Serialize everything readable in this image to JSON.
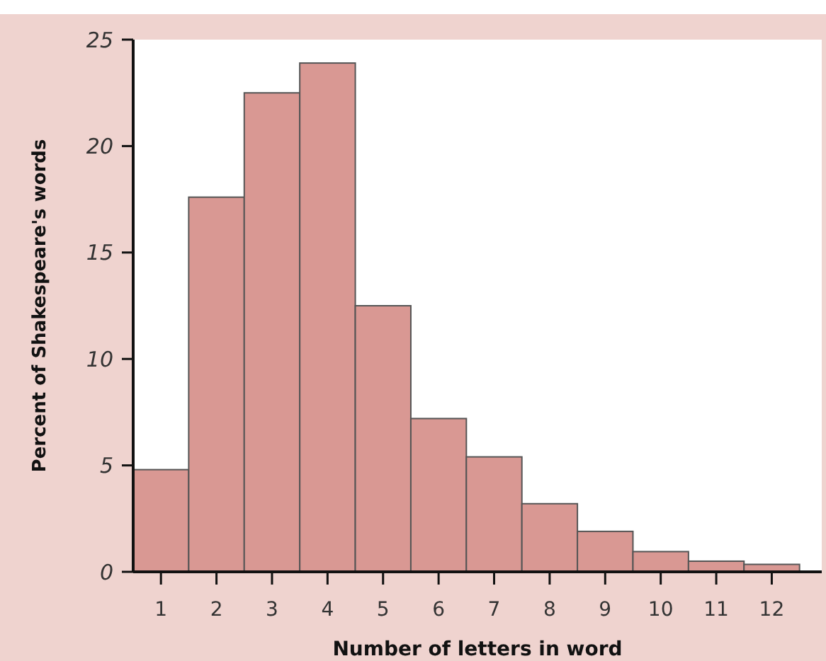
{
  "chart_data": {
    "type": "histogram",
    "xlabel": "Number of letters in word",
    "ylabel": "Percent of Shakespeare's words",
    "bins": [
      0.5,
      1.5,
      2.5,
      3.5,
      4.5,
      5.5,
      6.5,
      7.5,
      8.5,
      9.5,
      10.5,
      11.5,
      12.5
    ],
    "values": [
      4.8,
      17.6,
      22.5,
      23.9,
      12.5,
      7.2,
      5.4,
      3.2,
      1.9,
      0.95,
      0.5,
      0.35
    ],
    "color": "#d99893",
    "xlim": [
      0.5,
      12.9
    ],
    "xticks": [
      1,
      2,
      3,
      4,
      5,
      6,
      7,
      8,
      9,
      10,
      11,
      12
    ],
    "ylim": [
      0,
      25
    ],
    "yticks": [
      0,
      5,
      10,
      15,
      20,
      25
    ]
  }
}
